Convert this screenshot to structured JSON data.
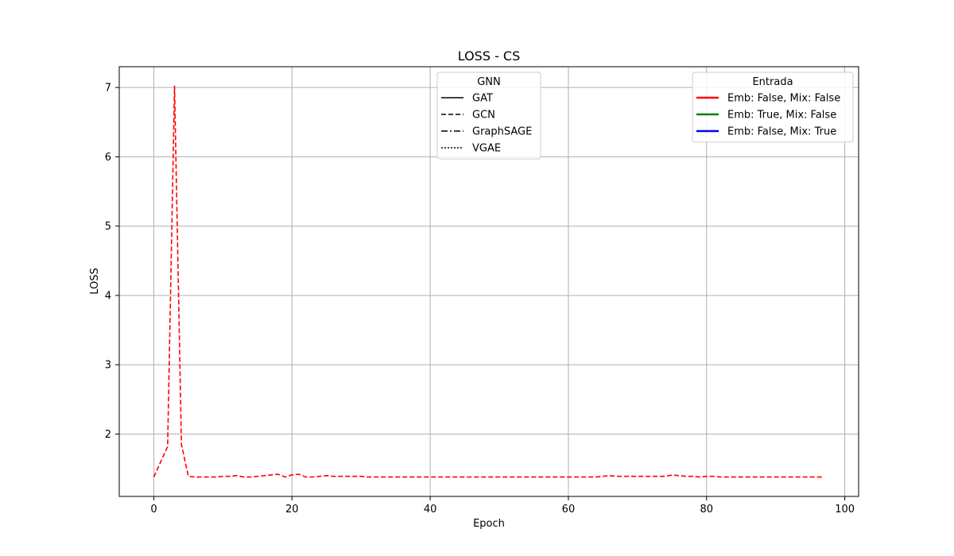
{
  "chart_data": {
    "type": "line",
    "title": "LOSS - CS",
    "xlabel": "Epoch",
    "ylabel": "LOSS",
    "xlim": [
      -5,
      102
    ],
    "ylim": [
      1.1,
      7.3
    ],
    "xticks": [
      0,
      20,
      40,
      60,
      80,
      100
    ],
    "yticks": [
      2,
      3,
      4,
      5,
      6,
      7
    ],
    "grid": true,
    "legends": [
      {
        "title": "GNN",
        "placement": "top-center",
        "entries": [
          {
            "label": "GAT",
            "style": "solid",
            "color": "#000000"
          },
          {
            "label": "GCN",
            "style": "dashed",
            "color": "#000000"
          },
          {
            "label": "GraphSAGE",
            "style": "dashdot",
            "color": "#000000"
          },
          {
            "label": "VGAE",
            "style": "dotted",
            "color": "#000000"
          }
        ]
      },
      {
        "title": "Entrada",
        "placement": "top-right",
        "entries": [
          {
            "label": "Emb: False, Mix: False",
            "style": "solid",
            "color": "#ff0000"
          },
          {
            "label": "Emb: True, Mix: False",
            "style": "solid",
            "color": "#008000"
          },
          {
            "label": "Emb: False, Mix: True",
            "style": "solid",
            "color": "#0000ff"
          }
        ]
      }
    ],
    "series": [
      {
        "gnn": "GCN",
        "input": "Emb: False, Mix: False",
        "color": "#ff0000",
        "style": "dashed",
        "x": [
          0,
          1,
          2,
          3,
          4,
          5,
          6,
          7,
          8,
          9,
          10,
          11,
          12,
          13,
          14,
          15,
          16,
          17,
          18,
          19,
          20,
          21,
          22,
          23,
          24,
          25,
          26,
          27,
          28,
          29,
          30,
          31,
          32,
          33,
          34,
          35,
          36,
          37,
          38,
          39,
          40,
          41,
          42,
          43,
          44,
          45,
          46,
          47,
          48,
          49,
          50,
          51,
          52,
          53,
          54,
          55,
          56,
          57,
          58,
          59,
          60,
          61,
          62,
          63,
          64,
          65,
          66,
          67,
          68,
          69,
          70,
          71,
          72,
          73,
          74,
          75,
          76,
          77,
          78,
          79,
          80,
          81,
          82,
          83,
          84,
          85,
          86,
          87,
          88,
          89,
          90,
          91,
          92,
          93,
          94,
          95,
          96,
          97
        ],
        "y": [
          1.38,
          1.6,
          1.82,
          7.02,
          1.85,
          1.39,
          1.38,
          1.38,
          1.38,
          1.38,
          1.39,
          1.39,
          1.4,
          1.38,
          1.38,
          1.39,
          1.4,
          1.41,
          1.42,
          1.38,
          1.41,
          1.42,
          1.38,
          1.38,
          1.39,
          1.4,
          1.39,
          1.39,
          1.39,
          1.39,
          1.39,
          1.38,
          1.38,
          1.38,
          1.38,
          1.38,
          1.38,
          1.38,
          1.38,
          1.38,
          1.38,
          1.38,
          1.38,
          1.38,
          1.38,
          1.38,
          1.38,
          1.38,
          1.38,
          1.38,
          1.38,
          1.38,
          1.38,
          1.38,
          1.38,
          1.38,
          1.38,
          1.38,
          1.38,
          1.38,
          1.38,
          1.38,
          1.38,
          1.38,
          1.38,
          1.39,
          1.4,
          1.39,
          1.39,
          1.39,
          1.39,
          1.39,
          1.39,
          1.39,
          1.39,
          1.41,
          1.4,
          1.39,
          1.39,
          1.38,
          1.39,
          1.39,
          1.38,
          1.38,
          1.38,
          1.38,
          1.38,
          1.38,
          1.38,
          1.38,
          1.38,
          1.38,
          1.38,
          1.38,
          1.38,
          1.38,
          1.38,
          1.38
        ]
      }
    ]
  }
}
